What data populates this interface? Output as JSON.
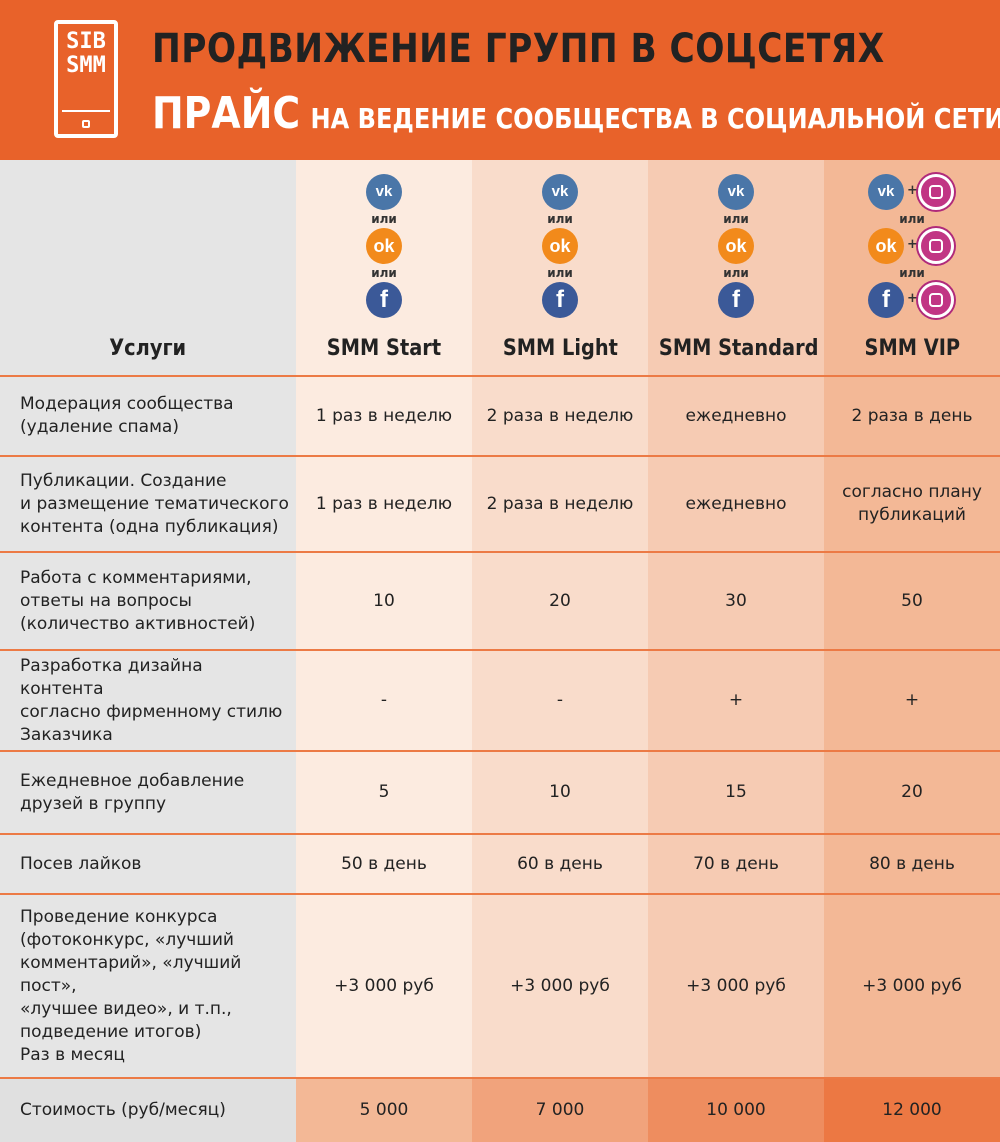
{
  "header": {
    "logo_line1": "SIB",
    "logo_line2": "SMM",
    "title": "ПРОДВИЖЕНИЕ ГРУПП В СОЦСЕТЯХ",
    "subtitle_big": "ПРАЙС",
    "subtitle_small": "НА ВЕДЕНИЕ СООБЩЕСТВА В СОЦИАЛЬНОЙ СЕТИ"
  },
  "icons": {
    "or_text": "или",
    "plus": "+",
    "vk": "vk",
    "ok": "ok",
    "fb": "f"
  },
  "table": {
    "services_header": "Услуги",
    "plans": [
      "SMM Start",
      "SMM Light",
      "SMM Standard",
      "SMM VIP"
    ],
    "rows": [
      {
        "label": "Модерация сообщества\n(удаление спама)",
        "values": [
          "1 раз в неделю",
          "2 раза в неделю",
          "ежедневно",
          "2 раза в день"
        ]
      },
      {
        "label": "Публикации. Создание\nи размещение тематического\nконтента (одна публикация)",
        "values": [
          "1 раз в неделю",
          "2 раза в неделю",
          "ежедневно",
          "согласно плану\nпубликаций"
        ]
      },
      {
        "label": "Работа с комментариями,\nответы на вопросы\n(количество активностей)",
        "values": [
          "10",
          "20",
          "30",
          "50"
        ]
      },
      {
        "label": "Разработка дизайна контента\nсогласно фирменному стилю\nЗаказчика",
        "values": [
          "-",
          "-",
          "+",
          "+"
        ]
      },
      {
        "label": "Ежедневное добавление\nдрузей в группу",
        "values": [
          "5",
          "10",
          "15",
          "20"
        ]
      },
      {
        "label": "Посев лайков",
        "values": [
          "50 в день",
          "60 в день",
          "70 в день",
          "80 в день"
        ]
      },
      {
        "label": "Проведение конкурса\n(фотоконкурс, «лучший\nкомментарий», «лучший пост»,\n«лучшее видео», и т.п.,\nподведение итогов)\nРаз в месяц",
        "values": [
          "+3 000 руб",
          "+3 000 руб",
          "+3 000 руб",
          "+3 000 руб"
        ]
      }
    ],
    "price_row": {
      "label": "Стоимость (руб/месяц)",
      "values": [
        "5 000",
        "7 000",
        "10 000",
        "12 000"
      ]
    }
  },
  "colors": {
    "brand_orange": "#e8622a",
    "vk_blue": "#4a76a8",
    "ok_orange": "#f28a1b",
    "fb_blue": "#3b5998",
    "instagram": "#c13584"
  }
}
